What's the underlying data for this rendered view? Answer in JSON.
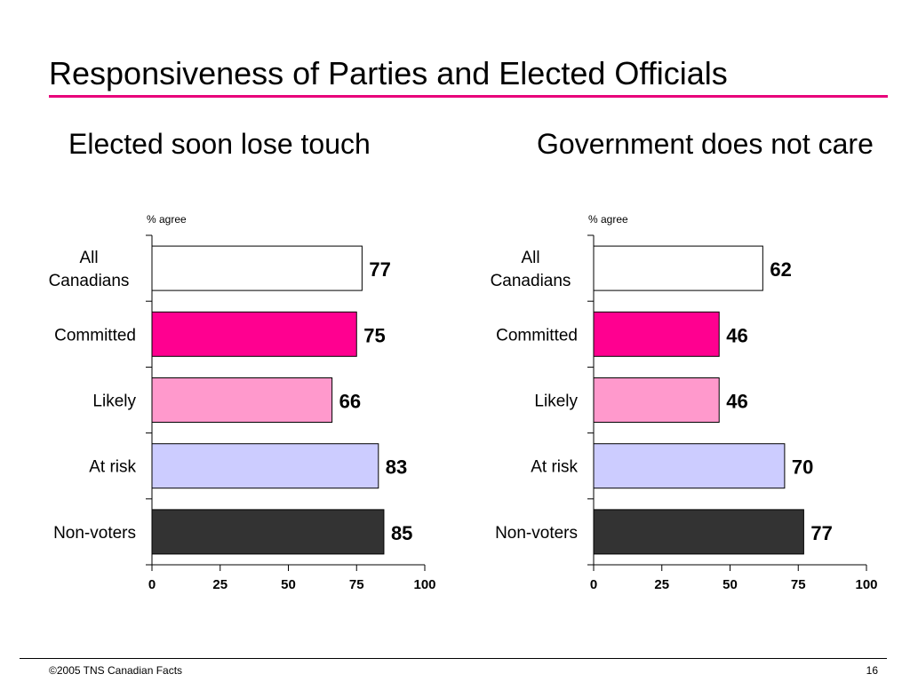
{
  "slide": {
    "title": "Responsiveness of Parties and Elected Officials",
    "accent_color": "#e8007a",
    "footer_copyright": "©2005 TNS Canadian Facts",
    "page_number": "16"
  },
  "chart_data": [
    {
      "type": "bar",
      "orientation": "horizontal",
      "title": "Elected soon lose touch",
      "ylabel": "% agree",
      "categories": [
        "All\nCanadians",
        "Committed",
        "Likely",
        "At risk",
        "Non-voters"
      ],
      "values": [
        77,
        75,
        66,
        83,
        85
      ],
      "colors": [
        "#ffffff",
        "#ff0090",
        "#ff99cc",
        "#ccccff",
        "#333333"
      ],
      "xlim": [
        0,
        100
      ],
      "xticks": [
        0,
        25,
        50,
        75,
        100
      ],
      "data_labels": true,
      "grid": false
    },
    {
      "type": "bar",
      "orientation": "horizontal",
      "title": "Government does not care",
      "ylabel": "% agree",
      "categories": [
        "All\nCanadians",
        "Committed",
        "Likely",
        "At risk",
        "Non-voters"
      ],
      "values": [
        62,
        46,
        46,
        70,
        77
      ],
      "colors": [
        "#ffffff",
        "#ff0090",
        "#ff99cc",
        "#ccccff",
        "#333333"
      ],
      "xlim": [
        0,
        100
      ],
      "xticks": [
        0,
        25,
        50,
        75,
        100
      ],
      "data_labels": true,
      "grid": false
    }
  ]
}
